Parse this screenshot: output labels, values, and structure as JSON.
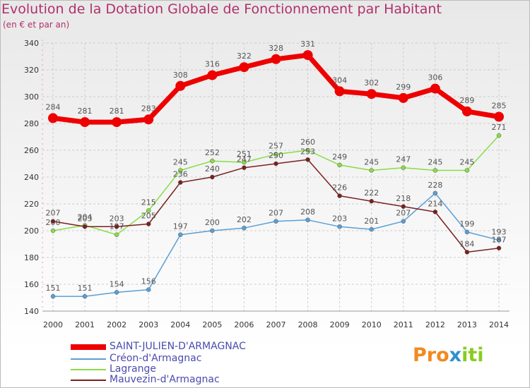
{
  "title": "Evolution de la Dotation Globale de Fonctionnement par Habitant",
  "subtitle": "(en € et par an)",
  "logo": {
    "p1": "Pro",
    "p2": "x",
    "p3": "iti"
  },
  "chart_data": {
    "type": "line",
    "title": "Evolution de la Dotation Globale de Fonctionnement par Habitant",
    "ylabel": "(en € et par an)",
    "xlabel": "",
    "x": [
      "2000",
      "2001",
      "2002",
      "2003",
      "2004",
      "2005",
      "2006",
      "2007",
      "2008",
      "2009",
      "2010",
      "2011",
      "2012",
      "2013",
      "2014"
    ],
    "ylim": [
      140,
      340
    ],
    "yticks": [
      140,
      160,
      180,
      200,
      220,
      240,
      260,
      280,
      300,
      320,
      340
    ],
    "grid": true,
    "legend_position": "bottom-left",
    "series": [
      {
        "name": "SAINT-JULIEN-D'ARMAGNAC",
        "color": "#ee0000",
        "values": [
          284,
          281,
          281,
          283,
          308,
          316,
          322,
          328,
          331,
          304,
          302,
          299,
          306,
          289,
          285
        ]
      },
      {
        "name": "Créon-d'Armagnac",
        "color": "#5a9fd4",
        "values": [
          151,
          151,
          154,
          156,
          197,
          200,
          202,
          207,
          208,
          203,
          201,
          207,
          228,
          199,
          193
        ]
      },
      {
        "name": "Lagrange",
        "color": "#88dd44",
        "values": [
          200,
          204,
          197,
          215,
          245,
          252,
          251,
          257,
          260,
          249,
          245,
          247,
          245,
          245,
          271
        ]
      },
      {
        "name": "Mauvezin-d'Armagnac",
        "color": "#7a2020",
        "values": [
          207,
          203,
          203,
          205,
          236,
          240,
          247,
          250,
          253,
          226,
          222,
          218,
          214,
          184,
          187
        ]
      }
    ]
  }
}
